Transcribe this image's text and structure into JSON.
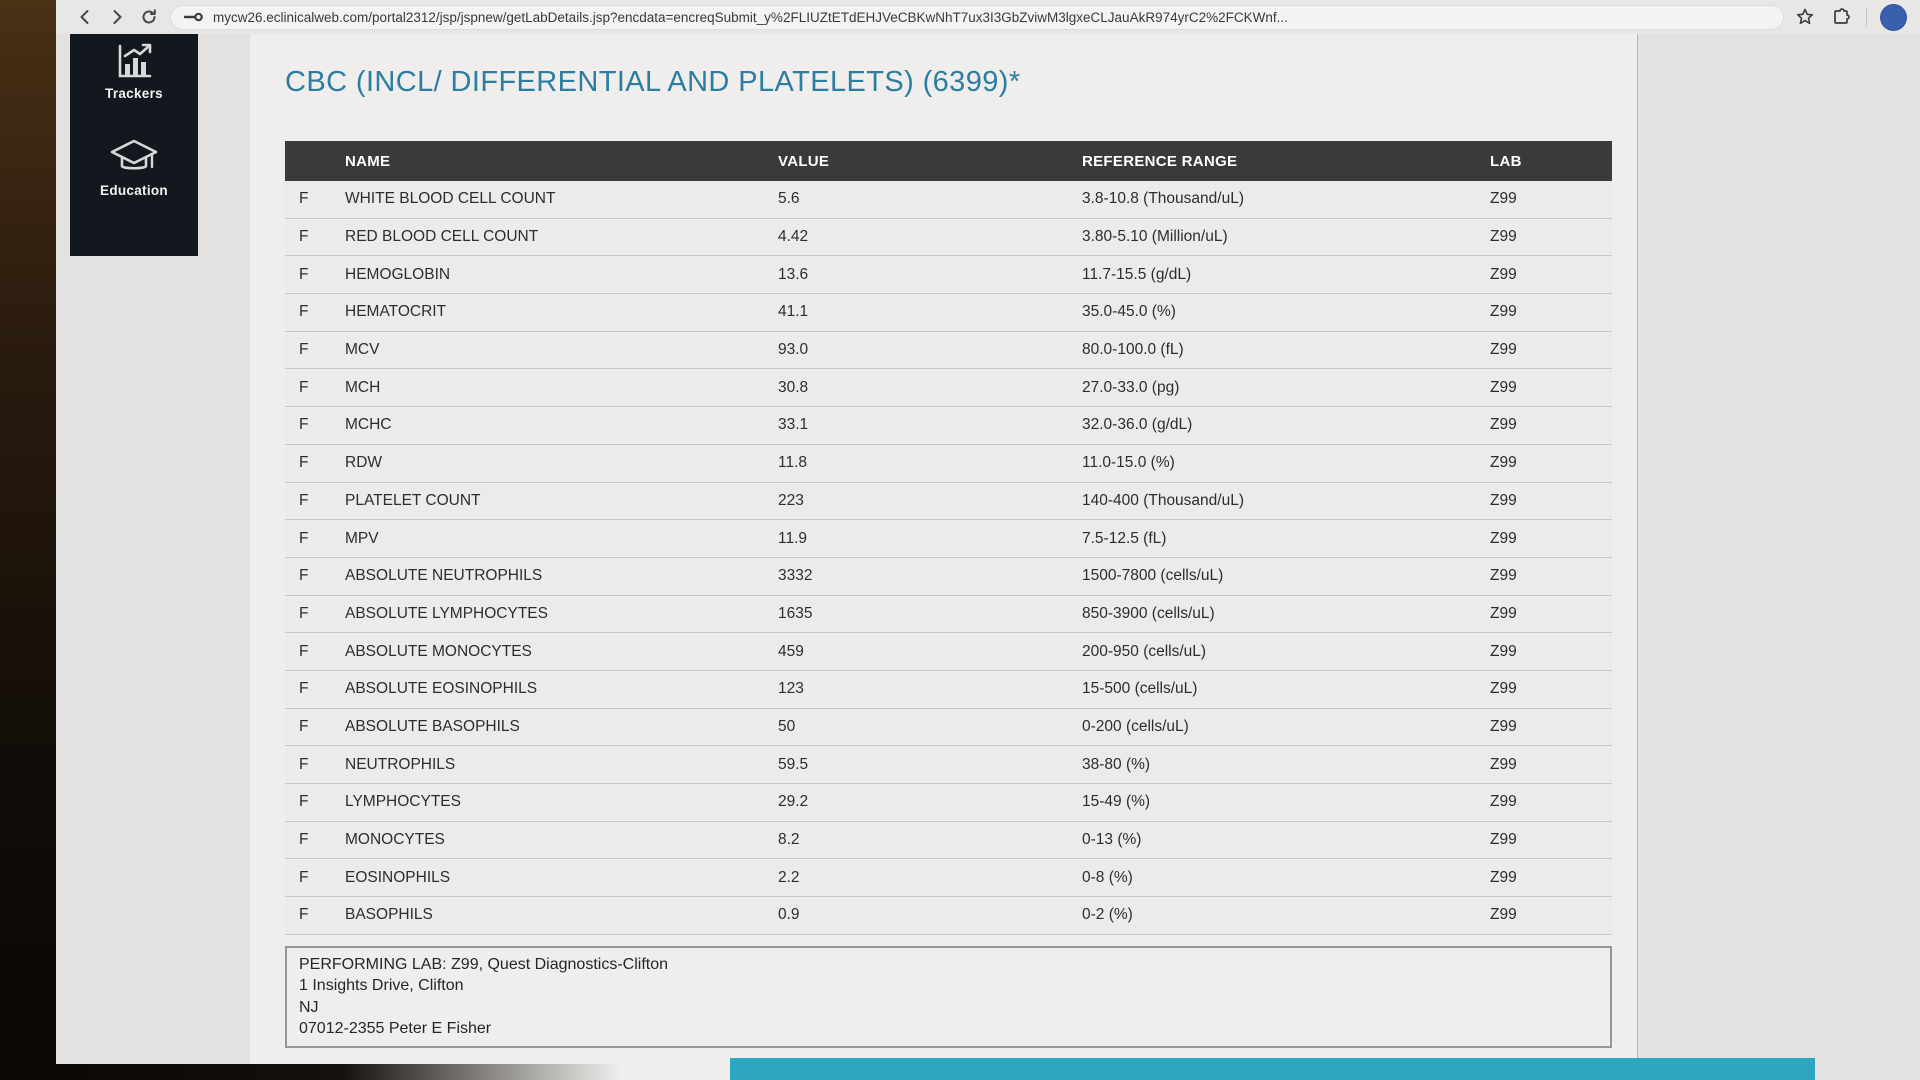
{
  "browser": {
    "url": "mycw26.eclinicalweb.com/portal2312/jsp/jspnew/getLabDetails.jsp?encdata=encreqSubmit_y%2FLIUZtETdEHJVeCBKwNhT7ux3I3GbZviwM3lgxeCLJauAkR974yrC2%2FCKWnf...",
    "icons": [
      "back-icon",
      "forward-icon",
      "reload-icon",
      "site-info-icon",
      "bookmark-star-icon",
      "extensions-icon",
      "profile-avatar"
    ]
  },
  "sidebar": {
    "items": [
      {
        "label": "Trackers",
        "icon": "trackers-chart-icon"
      },
      {
        "label": "Education",
        "icon": "education-cap-icon"
      }
    ]
  },
  "main": {
    "title": "CBC (INCL/ DIFFERENTIAL AND PLATELETS) (6399)*",
    "table": {
      "columns": [
        "NAME",
        "VALUE",
        "REFERENCE RANGE",
        "LAB"
      ],
      "rows": [
        {
          "flag": "F",
          "name": "WHITE BLOOD CELL COUNT",
          "value": "5.6",
          "range": "3.8-10.8 (Thousand/uL)",
          "lab": "Z99"
        },
        {
          "flag": "F",
          "name": "RED BLOOD CELL COUNT",
          "value": "4.42",
          "range": "3.80-5.10 (Million/uL)",
          "lab": "Z99"
        },
        {
          "flag": "F",
          "name": "HEMOGLOBIN",
          "value": "13.6",
          "range": "11.7-15.5 (g/dL)",
          "lab": "Z99"
        },
        {
          "flag": "F",
          "name": "HEMATOCRIT",
          "value": "41.1",
          "range": "35.0-45.0 (%)",
          "lab": "Z99"
        },
        {
          "flag": "F",
          "name": "MCV",
          "value": "93.0",
          "range": "80.0-100.0 (fL)",
          "lab": "Z99"
        },
        {
          "flag": "F",
          "name": "MCH",
          "value": "30.8",
          "range": "27.0-33.0 (pg)",
          "lab": "Z99"
        },
        {
          "flag": "F",
          "name": "MCHC",
          "value": "33.1",
          "range": "32.0-36.0 (g/dL)",
          "lab": "Z99"
        },
        {
          "flag": "F",
          "name": "RDW",
          "value": "11.8",
          "range": "11.0-15.0 (%)",
          "lab": "Z99"
        },
        {
          "flag": "F",
          "name": "PLATELET COUNT",
          "value": "223",
          "range": "140-400 (Thousand/uL)",
          "lab": "Z99"
        },
        {
          "flag": "F",
          "name": "MPV",
          "value": "11.9",
          "range": "7.5-12.5 (fL)",
          "lab": "Z99"
        },
        {
          "flag": "F",
          "name": "ABSOLUTE NEUTROPHILS",
          "value": "3332",
          "range": "1500-7800 (cells/uL)",
          "lab": "Z99"
        },
        {
          "flag": "F",
          "name": "ABSOLUTE LYMPHOCYTES",
          "value": "1635",
          "range": "850-3900 (cells/uL)",
          "lab": "Z99"
        },
        {
          "flag": "F",
          "name": "ABSOLUTE MONOCYTES",
          "value": "459",
          "range": "200-950 (cells/uL)",
          "lab": "Z99"
        },
        {
          "flag": "F",
          "name": "ABSOLUTE EOSINOPHILS",
          "value": "123",
          "range": "15-500 (cells/uL)",
          "lab": "Z99"
        },
        {
          "flag": "F",
          "name": "ABSOLUTE BASOPHILS",
          "value": "50",
          "range": "0-200 (cells/uL)",
          "lab": "Z99"
        },
        {
          "flag": "F",
          "name": "NEUTROPHILS",
          "value": "59.5",
          "range": "38-80 (%)",
          "lab": "Z99"
        },
        {
          "flag": "F",
          "name": "LYMPHOCYTES",
          "value": "29.2",
          "range": "15-49 (%)",
          "lab": "Z99"
        },
        {
          "flag": "F",
          "name": "MONOCYTES",
          "value": "8.2",
          "range": "0-13 (%)",
          "lab": "Z99"
        },
        {
          "flag": "F",
          "name": "EOSINOPHILS",
          "value": "2.2",
          "range": "0-8 (%)",
          "lab": "Z99"
        },
        {
          "flag": "F",
          "name": "BASOPHILS",
          "value": "0.9",
          "range": "0-2 (%)",
          "lab": "Z99"
        }
      ]
    },
    "performing_lab": {
      "line1": "PERFORMING LAB: Z99, Quest Diagnostics-Clifton",
      "line2": "1 Insights Drive, Clifton",
      "line3": "NJ",
      "line4": "07012-2355 Peter E Fisher"
    }
  },
  "colors": {
    "title_teal": "#2b7ea1",
    "table_header_bg": "#3a3a3c",
    "sidebar_bg": "#13181e",
    "footer_teal": "#2ea6c1",
    "avatar_blue": "#3a5fae",
    "page_bg": "#efeeec"
  }
}
